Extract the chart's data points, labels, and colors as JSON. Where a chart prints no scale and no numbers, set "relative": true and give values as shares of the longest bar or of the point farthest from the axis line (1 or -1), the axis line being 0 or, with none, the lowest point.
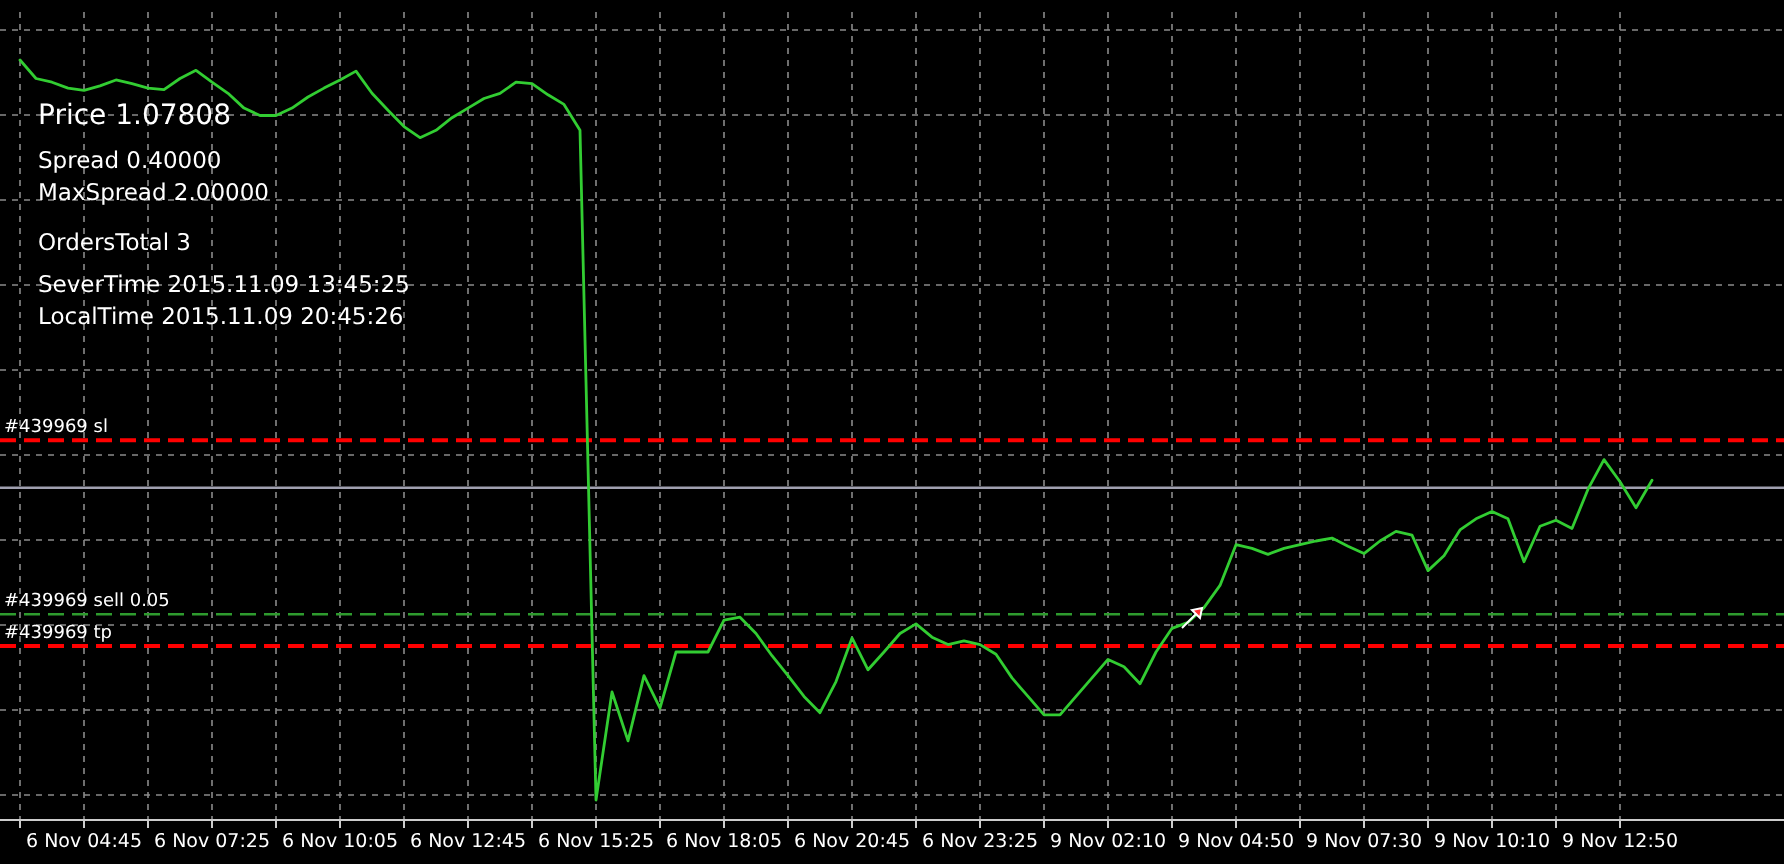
{
  "chart_data": {
    "type": "line",
    "relative": true,
    "marker": "none",
    "line_style": "solid",
    "grid": true,
    "categories": [
      null,
      null,
      null,
      null,
      "6 Nov 04:45",
      null,
      null,
      null,
      null,
      null,
      null,
      null,
      "6 Nov 07:25",
      null,
      null,
      null,
      null,
      null,
      null,
      null,
      "6 Nov 10:05",
      null,
      null,
      null,
      null,
      null,
      null,
      null,
      "6 Nov 12:45",
      null,
      null,
      null,
      null,
      null,
      null,
      null,
      "6 Nov 15:25",
      null,
      null,
      null,
      null,
      null,
      null,
      null,
      "6 Nov 18:05",
      null,
      null,
      null,
      null,
      null,
      null,
      null,
      "6 Nov 20:45",
      null,
      null,
      null,
      null,
      null,
      null,
      null,
      "6 Nov 23:25",
      null,
      null,
      null,
      null,
      null,
      null,
      null,
      "9 Nov 02:10",
      null,
      null,
      null,
      null,
      null,
      null,
      null,
      "9 Nov 04:50",
      null,
      null,
      null,
      null,
      null,
      null,
      null,
      "9 Nov 07:30",
      null,
      null,
      null,
      null,
      null,
      null,
      null,
      "9 Nov 10:10",
      null,
      null,
      null,
      null,
      null,
      null,
      null,
      "9 Nov 12:50",
      null,
      null
    ],
    "series": [
      {
        "color": "#32cd32",
        "values": [
          1,
          0.975,
          0.97,
          0.962,
          0.959,
          0.965,
          0.973,
          0.968,
          0.962,
          0.96,
          0.975,
          0.986,
          0.97,
          0.955,
          0.935,
          0.925,
          0.925,
          0.935,
          0.95,
          0.962,
          0.973,
          0.985,
          0.955,
          0.932,
          0.91,
          0.895,
          0.905,
          0.922,
          0.935,
          0.948,
          0.955,
          0.97,
          0.968,
          0.953,
          0.94,
          0.905,
          0,
          0.146,
          0.08,
          0.168,
          0.124,
          0.2,
          0.2,
          0.2,
          0.243,
          0.247,
          0.225,
          0.195,
          0.168,
          0.14,
          0.118,
          0.16,
          0.219,
          0.176,
          0.2,
          0.225,
          0.238,
          0.22,
          0.21,
          0.215,
          0.21,
          0.197,
          0.165,
          0.14,
          0.115,
          0.115,
          0.14,
          0.165,
          0.19,
          0.18,
          0.157,
          0.2,
          0.232,
          0.24,
          0.26,
          0.29,
          0.345,
          0.34,
          0.332,
          0.34,
          0.345,
          0.35,
          0.354,
          0.343,
          0.333,
          0.35,
          0.363,
          0.358,
          0.31,
          0.33,
          0.365,
          0.38,
          0.39,
          0.38,
          0.322,
          0.37,
          0.378,
          0.367,
          0.42,
          0.46,
          0.43,
          0.395,
          0.432
        ]
      }
    ],
    "ref_lines": [
      {
        "axis": "y",
        "value": 0.486,
        "label": "#439969 sl",
        "color": "#ff0000",
        "line_style": "dashed"
      },
      {
        "axis": "y",
        "value": 0.422,
        "label": null,
        "color": "#a0a0b0",
        "line_style": "solid"
      },
      {
        "axis": "y",
        "value": 0.251,
        "label": "#439969 sell 0.05",
        "color": "#2e9b2e",
        "line_style": "dashed"
      },
      {
        "axis": "y",
        "value": 0.208,
        "label": "#439969 tp",
        "color": "#ff0000",
        "line_style": "dashed"
      }
    ],
    "annotations": [
      "Price  1.07808",
      "Spread  0.40000",
      "MaxSpread  2.00000",
      "OrdersTotal  3",
      "SeverTime  2015.11.09 13:45:25",
      "LocalTime  2015.11.09 20:45:26"
    ]
  }
}
